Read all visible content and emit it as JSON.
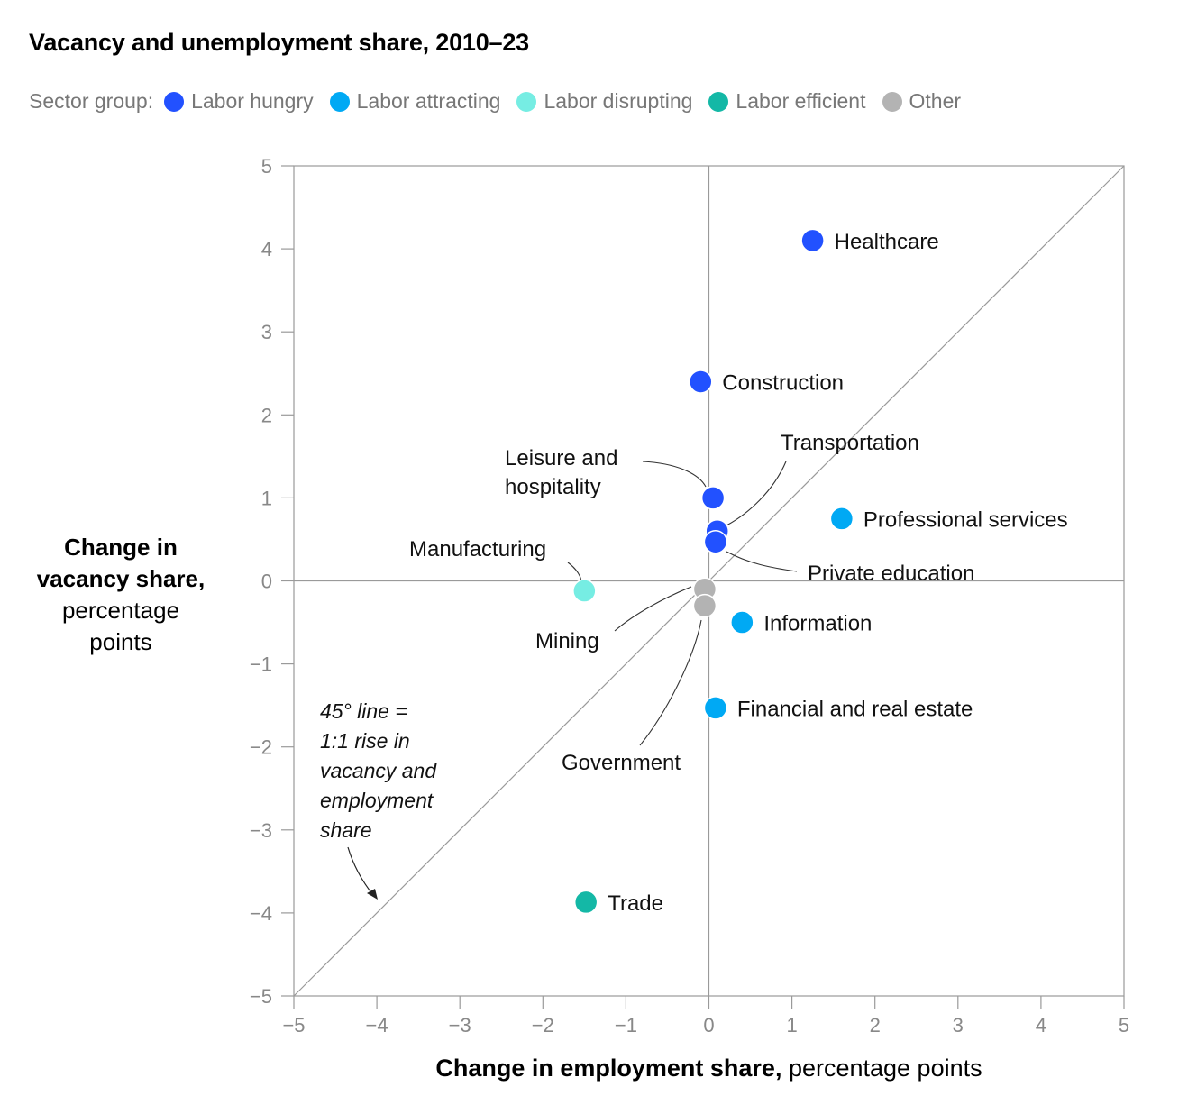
{
  "chart_data": {
    "type": "scatter",
    "title": "Vacancy and unemployment share, 2010–23",
    "legend_lead": "Sector group:",
    "legend_placement": "top",
    "groups": [
      {
        "key": "hungry",
        "name": "Labor hungry",
        "color": "#2251ff"
      },
      {
        "key": "attracting",
        "name": "Labor attracting",
        "color": "#00a9f4"
      },
      {
        "key": "disrupting",
        "name": "Labor disrupting",
        "color": "#76ede3"
      },
      {
        "key": "efficient",
        "name": "Labor efficient",
        "color": "#14b8a6"
      },
      {
        "key": "other",
        "name": "Other",
        "color": "#b3b3b3"
      }
    ],
    "xlabel_bold": "Change in employment share,",
    "xlabel_rest": " percentage points",
    "ylabel_bold_1": "Change in",
    "ylabel_bold_2": "vacancy share,",
    "ylabel_rest_1": "percentage",
    "ylabel_rest_2": "points",
    "xlim": [
      -5,
      5
    ],
    "ylim": [
      -5,
      5
    ],
    "xticks": [
      -5,
      -4,
      -3,
      -2,
      -1,
      0,
      1,
      2,
      3,
      4,
      5
    ],
    "yticks": [
      5,
      4,
      3,
      2,
      1,
      0,
      -1,
      -2,
      -3,
      -4,
      -5
    ],
    "reference_line": "y = x",
    "annotation": {
      "lines": [
        "45° line =",
        "1:1 rise in",
        "vacancy and",
        "employment",
        "share"
      ]
    },
    "points": [
      {
        "name": "Healthcare",
        "group": "hungry",
        "x": 1.25,
        "y": 4.1
      },
      {
        "name": "Construction",
        "group": "hungry",
        "x": -0.1,
        "y": 2.4
      },
      {
        "name": "Leisure and hospitality",
        "group": "hungry",
        "x": 0.05,
        "y": 1.0
      },
      {
        "name": "Transportation",
        "group": "hungry",
        "x": 0.1,
        "y": 0.6
      },
      {
        "name": "Private education",
        "group": "hungry",
        "x": 0.08,
        "y": 0.47
      },
      {
        "name": "Professional services",
        "group": "attracting",
        "x": 1.6,
        "y": 0.75
      },
      {
        "name": "Information",
        "group": "attracting",
        "x": 0.4,
        "y": -0.5
      },
      {
        "name": "Financial and real estate",
        "group": "attracting",
        "x": 0.08,
        "y": -1.53
      },
      {
        "name": "Manufacturing",
        "group": "disrupting",
        "x": -1.5,
        "y": -0.12
      },
      {
        "name": "Trade",
        "group": "efficient",
        "x": -1.48,
        "y": -3.87
      },
      {
        "name": "Mining",
        "group": "other",
        "x": -0.05,
        "y": -0.1
      },
      {
        "name": "Government",
        "group": "other",
        "x": -0.05,
        "y": -0.3
      }
    ]
  }
}
